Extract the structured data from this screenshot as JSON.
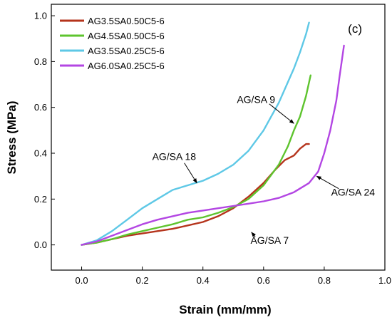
{
  "chart_data": {
    "type": "line",
    "panel_label": "(c)",
    "xlabel": "Strain (mm/mm)",
    "ylabel": "Stress (MPa)",
    "xlim": [
      -0.1,
      1.0
    ],
    "ylim": [
      -0.11,
      1.05
    ],
    "xticks": [
      "0.0",
      "0.2",
      "0.4",
      "0.6",
      "0.8",
      "1.0"
    ],
    "xtick_values": [
      0.0,
      0.2,
      0.4,
      0.6,
      0.8,
      1.0
    ],
    "yticks": [
      "0.0",
      "0.2",
      "0.4",
      "0.6",
      "0.8",
      "1.0"
    ],
    "ytick_values": [
      0.0,
      0.2,
      0.4,
      0.6,
      0.8,
      1.0
    ],
    "grid": false,
    "legend_position": "top-left",
    "series": [
      {
        "name": "AG3.5SA0.50C5-6",
        "color": "#b5341c",
        "x": [
          0.0,
          0.05,
          0.1,
          0.15,
          0.2,
          0.25,
          0.3,
          0.35,
          0.4,
          0.45,
          0.5,
          0.55,
          0.6,
          0.64,
          0.67,
          0.7,
          0.72,
          0.74,
          0.75
        ],
        "y": [
          0.0,
          0.01,
          0.025,
          0.04,
          0.05,
          0.06,
          0.07,
          0.085,
          0.1,
          0.125,
          0.16,
          0.21,
          0.27,
          0.33,
          0.37,
          0.39,
          0.42,
          0.44,
          0.44
        ]
      },
      {
        "name": "AG4.5SA0.50C5-6",
        "color": "#5ec42e",
        "x": [
          0.0,
          0.05,
          0.1,
          0.15,
          0.2,
          0.25,
          0.3,
          0.35,
          0.4,
          0.45,
          0.5,
          0.55,
          0.6,
          0.65,
          0.68,
          0.7,
          0.72,
          0.74,
          0.755
        ],
        "y": [
          0.0,
          0.01,
          0.025,
          0.045,
          0.06,
          0.075,
          0.09,
          0.11,
          0.12,
          0.14,
          0.165,
          0.2,
          0.26,
          0.35,
          0.43,
          0.5,
          0.56,
          0.65,
          0.74
        ]
      },
      {
        "name": "AG3.5SA0.25C5-6",
        "color": "#5ec8e6",
        "x": [
          0.0,
          0.05,
          0.1,
          0.15,
          0.2,
          0.25,
          0.3,
          0.35,
          0.4,
          0.45,
          0.5,
          0.55,
          0.6,
          0.65,
          0.7,
          0.72,
          0.74,
          0.75
        ],
        "y": [
          0.0,
          0.02,
          0.06,
          0.11,
          0.16,
          0.2,
          0.24,
          0.26,
          0.28,
          0.31,
          0.35,
          0.41,
          0.5,
          0.62,
          0.77,
          0.84,
          0.92,
          0.97
        ]
      },
      {
        "name": "AG6.0SA0.25C5-6",
        "color": "#b346e3",
        "x": [
          0.0,
          0.05,
          0.1,
          0.15,
          0.2,
          0.25,
          0.3,
          0.35,
          0.4,
          0.45,
          0.5,
          0.55,
          0.6,
          0.65,
          0.7,
          0.75,
          0.78,
          0.8,
          0.82,
          0.84,
          0.85,
          0.865
        ],
        "y": [
          0.0,
          0.015,
          0.04,
          0.065,
          0.09,
          0.11,
          0.125,
          0.14,
          0.15,
          0.16,
          0.17,
          0.18,
          0.19,
          0.205,
          0.23,
          0.27,
          0.32,
          0.4,
          0.5,
          0.63,
          0.73,
          0.87
        ]
      }
    ],
    "annotations": [
      {
        "text": "AG/SA 9",
        "text_x": 0.575,
        "text_y": 0.62,
        "arrow_x": 0.7,
        "arrow_y": 0.53
      },
      {
        "text": "AG/SA 18",
        "text_x": 0.305,
        "text_y": 0.37,
        "arrow_x": 0.38,
        "arrow_y": 0.27
      },
      {
        "text": "AG/SA 7",
        "text_x": 0.62,
        "text_y": 0.005,
        "arrow_x": 0.56,
        "arrow_y": 0.055
      },
      {
        "text": "AG/SA 24",
        "text_x": 0.895,
        "text_y": 0.215,
        "arrow_x": 0.775,
        "arrow_y": 0.3
      }
    ]
  }
}
